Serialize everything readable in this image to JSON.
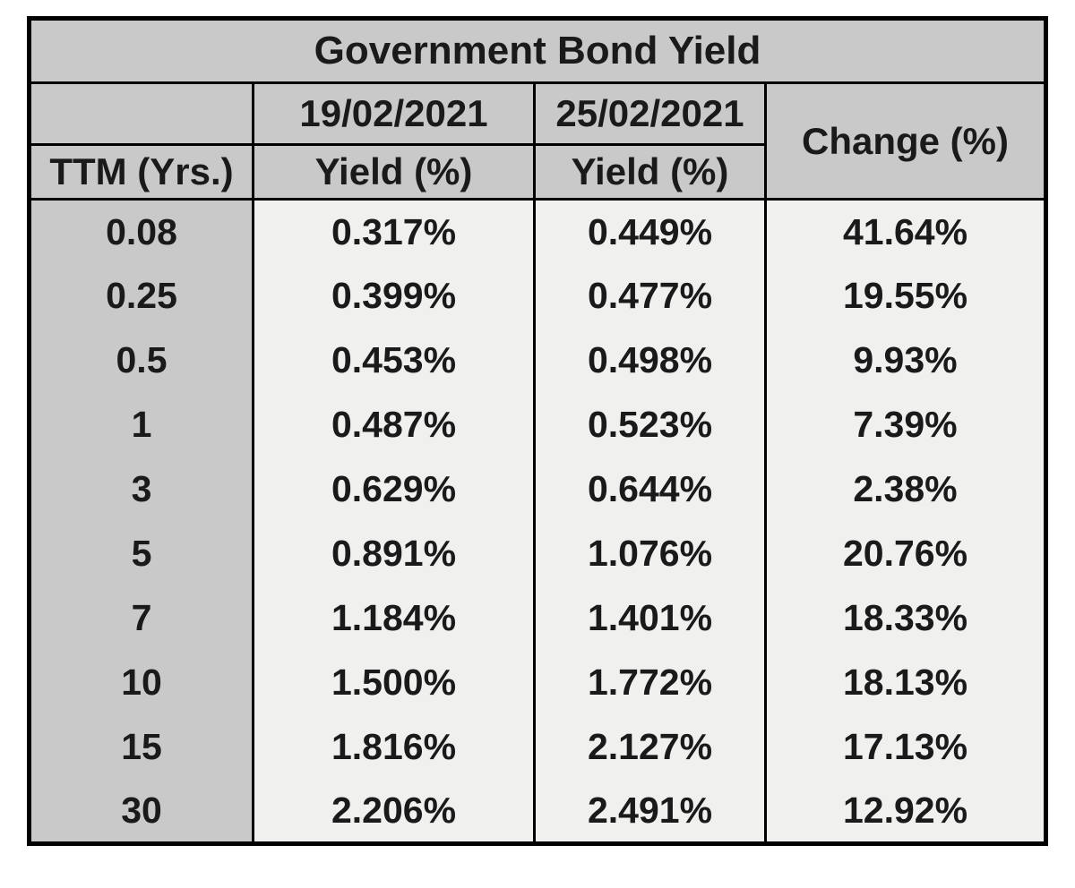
{
  "colors": {
    "header_bg": "#c9c9c9",
    "row_header_bg": "#c9c9c9",
    "data_bg": "#f0f0ee",
    "border": "#000000",
    "text": "#1a1a1a",
    "page_bg": "#ffffff"
  },
  "chart_data": {
    "type": "table",
    "title": "Government Bond Yield",
    "column_group_headers": [
      "",
      "19/02/2021",
      "25/02/2021",
      "Change (%)"
    ],
    "sub_headers": [
      "TTM (Yrs.)",
      "Yield (%)",
      "Yield (%)"
    ],
    "columns": [
      "TTM (Yrs.)",
      "19/02/2021 Yield (%)",
      "25/02/2021 Yield (%)",
      "Change (%)"
    ],
    "rows": [
      {
        "ttm": "0.08",
        "y1": "0.317%",
        "y2": "0.449%",
        "chg": "41.64%"
      },
      {
        "ttm": "0.25",
        "y1": "0.399%",
        "y2": "0.477%",
        "chg": "19.55%"
      },
      {
        "ttm": "0.5",
        "y1": "0.453%",
        "y2": "0.498%",
        "chg": "9.93%"
      },
      {
        "ttm": "1",
        "y1": "0.487%",
        "y2": "0.523%",
        "chg": "7.39%"
      },
      {
        "ttm": "3",
        "y1": "0.629%",
        "y2": "0.644%",
        "chg": "2.38%"
      },
      {
        "ttm": "5",
        "y1": "0.891%",
        "y2": "1.076%",
        "chg": "20.76%"
      },
      {
        "ttm": "7",
        "y1": "1.184%",
        "y2": "1.401%",
        "chg": "18.33%"
      },
      {
        "ttm": "10",
        "y1": "1.500%",
        "y2": "1.772%",
        "chg": "18.13%"
      },
      {
        "ttm": "15",
        "y1": "1.816%",
        "y2": "2.127%",
        "chg": "17.13%"
      },
      {
        "ttm": "30",
        "y1": "2.206%",
        "y2": "2.491%",
        "chg": "12.92%"
      }
    ]
  }
}
